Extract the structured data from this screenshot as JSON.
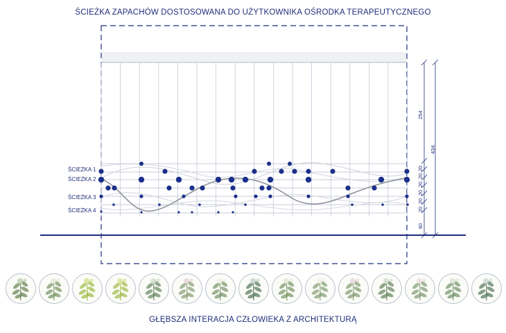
{
  "header": {
    "title": "ŚCIEŻKA ZAPACHÓW DOSTOSOWANA DO UŻYTKOWNIKA OŚRODKA TERAPEUTYCZNEGO"
  },
  "footer": {
    "subtitle": "GŁĘBSZA INTERACJA CZŁOWIEKA Z ARCHITEKTURĄ"
  },
  "paths": [
    {
      "label": "ŚCIEŻKA 1"
    },
    {
      "label": "ŚCIEŻKA 2"
    },
    {
      "label": "ŚCIEŻKA 3"
    },
    {
      "label": "ŚCIEŻKA 4"
    }
  ],
  "dimensions": {
    "d254": "254",
    "d434": "434",
    "d60": "60",
    "d20a": "20",
    "d20b": "20",
    "d20c": "20",
    "d20d": "20",
    "d20e": "20",
    "d20f": "20"
  },
  "colors": {
    "accent": "#1f2d7a",
    "dot": "#1b2f8a",
    "grid": "#b9c0d2",
    "curve_light": "#c9ced8",
    "curve_dark": "#8a8f98"
  },
  "plants": [
    {
      "icon": "thistle-plant-icon"
    },
    {
      "icon": "clover-plant-icon"
    },
    {
      "icon": "mint-plant-icon"
    },
    {
      "icon": "lemon-balm-plant-icon"
    },
    {
      "icon": "sage-plant-icon"
    },
    {
      "icon": "rose-plant-icon"
    },
    {
      "icon": "chamomile-plant-icon"
    },
    {
      "icon": "thistle-plant-icon"
    },
    {
      "icon": "clover-plant-icon"
    },
    {
      "icon": "yarrow-plant-icon"
    },
    {
      "icon": "geranium-plant-icon"
    },
    {
      "icon": "lavender-plant-icon"
    },
    {
      "icon": "rose-plant-icon"
    },
    {
      "icon": "herb-plant-icon"
    },
    {
      "icon": "thistle-plant-icon"
    }
  ]
}
